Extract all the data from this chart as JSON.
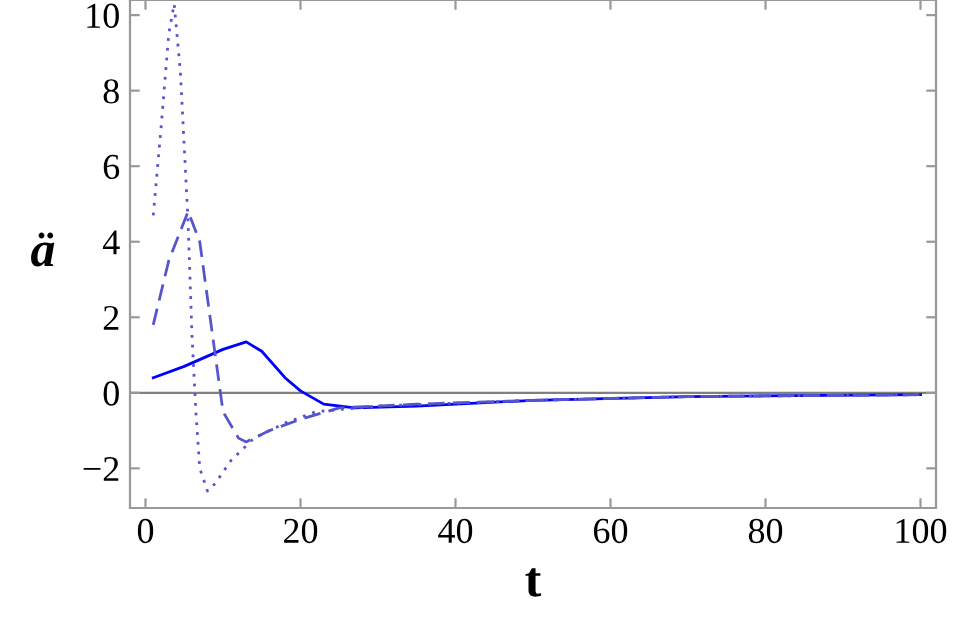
{
  "chart_data": {
    "type": "line",
    "xlabel": "t",
    "ylabel": "ä",
    "xlim": [
      -2,
      102
    ],
    "ylim": [
      -3.05,
      10.4
    ],
    "xticks": [
      0,
      20,
      40,
      60,
      80,
      100
    ],
    "yticks": [
      -2,
      0,
      2,
      4,
      6,
      8,
      10
    ],
    "grid": false,
    "legend": false,
    "marker": "none",
    "ref_lines": [
      {
        "axis": "y",
        "value": 0,
        "color": "#808080"
      }
    ],
    "series": [
      {
        "color": "#0000ff",
        "line_style": "solid",
        "x": [
          1,
          5,
          10,
          13,
          15,
          18,
          20,
          23,
          27,
          35,
          50,
          70,
          100
        ],
        "values": [
          0.4,
          0.7,
          1.15,
          1.35,
          1.1,
          0.4,
          0.05,
          -0.3,
          -0.4,
          -0.35,
          -0.2,
          -0.1,
          -0.05
        ]
      },
      {
        "color": "#5555cc",
        "line_style": "dashed",
        "x": [
          1,
          3,
          5.5,
          7,
          9,
          10,
          12,
          13,
          16,
          20,
          25,
          35,
          50,
          70,
          100
        ],
        "values": [
          1.8,
          3.5,
          4.8,
          4.0,
          1.0,
          -0.5,
          -1.2,
          -1.3,
          -1.0,
          -0.7,
          -0.4,
          -0.3,
          -0.2,
          -0.1,
          -0.05
        ]
      },
      {
        "color": "#5555cc",
        "line_style": "dotted",
        "x": [
          1,
          2,
          3,
          3.7,
          4.5,
          5.5,
          6,
          6.5,
          7,
          8,
          9,
          11,
          14,
          18,
          22,
          30,
          50,
          70,
          100
        ],
        "values": [
          4.7,
          7.0,
          9.5,
          10.3,
          8.5,
          4.5,
          1.5,
          -0.5,
          -2.0,
          -2.6,
          -2.4,
          -1.8,
          -1.2,
          -0.8,
          -0.5,
          -0.35,
          -0.2,
          -0.1,
          -0.05
        ]
      }
    ]
  }
}
